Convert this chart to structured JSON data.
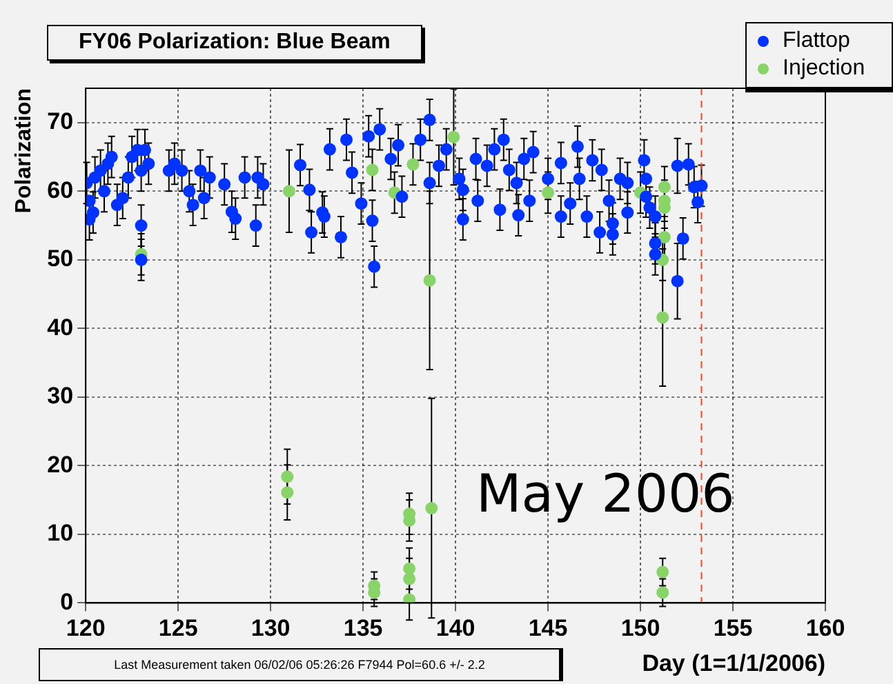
{
  "chart_data": {
    "type": "scatter",
    "title": "FY06 Polarization: Blue Beam",
    "xlabel": "Day (1=1/1/2006)",
    "ylabel": "Polarization",
    "xlim": [
      120,
      160
    ],
    "xticks": [
      120,
      125,
      130,
      135,
      140,
      145,
      150,
      155,
      160
    ],
    "ylim": [
      0,
      75
    ],
    "yticks": [
      0,
      10,
      20,
      30,
      40,
      50,
      60,
      70
    ],
    "grid": true,
    "legend": "top right",
    "marker": "circle",
    "ref_lines": [
      {
        "axis": "x",
        "value": 153.3,
        "color": "#ff4422",
        "line_style": "dashed"
      }
    ],
    "annotations": [
      "May 2006",
      "Last Measurement taken 06/02/06 05:26:26 F7944 Pol=60.6 +/- 2.2"
    ],
    "series": [
      {
        "name": "Flattop",
        "color": "#0033ff",
        "x": [
          120.05,
          120.2,
          120.2,
          120.4,
          120.5,
          120.8,
          121.0,
          121.2,
          121.4,
          121.7,
          122.0,
          122.3,
          122.5,
          122.8,
          123.0,
          123.2,
          123.4,
          123.0,
          123.0,
          124.5,
          124.8,
          125.2,
          125.6,
          125.8,
          126.2,
          126.4,
          126.7,
          127.5,
          127.9,
          128.1,
          128.6,
          129.3,
          129.2,
          129.6,
          131.6,
          132.1,
          132.2,
          132.8,
          133.2,
          132.9,
          133.8,
          134.1,
          134.4,
          134.9,
          135.5,
          135.6,
          135.3,
          135.9,
          136.5,
          136.9,
          137.1,
          138.1,
          138.6,
          138.6,
          139.1,
          139.5,
          140.2,
          140.4,
          140.4,
          141.2,
          141.1,
          141.7,
          142.1,
          142.4,
          142.6,
          142.9,
          143.3,
          143.4,
          143.7,
          144.2,
          144.0,
          145.0,
          145.7,
          145.7,
          146.2,
          146.6,
          147.4,
          147.9,
          146.7,
          147.1,
          147.8,
          148.3,
          148.5,
          148.5,
          148.9,
          149.3,
          149.3,
          150.2,
          150.3,
          150.3,
          150.5,
          150.8,
          150.8,
          150.8,
          152.0,
          152.0,
          152.3,
          152.6,
          152.9,
          153.3,
          153.1
        ],
        "values": [
          61.2,
          58.6,
          55.9,
          56.9,
          62,
          63,
          60,
          64,
          65,
          58,
          59,
          62,
          65,
          66,
          63,
          66,
          64,
          55,
          50,
          63,
          64,
          63,
          60,
          58,
          63,
          59,
          62,
          61,
          57,
          56,
          62,
          62,
          55,
          61,
          63.8,
          60.2,
          54,
          56.9,
          66.1,
          56.3,
          53.3,
          67.5,
          62.7,
          58.2,
          55.7,
          49,
          68,
          69,
          64.7,
          66.7,
          59.2,
          67.5,
          70.4,
          61.2,
          63.7,
          66.1,
          61.8,
          60.2,
          55.9,
          58.6,
          64.7,
          63.7,
          66.1,
          57.3,
          67.5,
          63.1,
          61.2,
          56.5,
          64.7,
          65.7,
          58.6,
          61.8,
          64.1,
          56.3,
          58.2,
          66.5,
          64.5,
          63.1,
          61.8,
          56.3,
          54,
          58.6,
          55.3,
          53.7,
          61.8,
          61.2,
          56.9,
          64.5,
          61.8,
          59.2,
          57.6,
          56.3,
          52.4,
          50.8,
          63.7,
          46.9,
          53.1,
          63.9,
          60.6,
          60.8,
          58.4
        ],
        "errors": [
          3,
          null,
          3,
          3,
          3,
          3,
          3,
          3,
          3,
          3,
          3,
          3,
          3,
          3,
          3,
          3,
          3,
          3,
          3,
          3,
          3,
          3,
          3,
          3,
          3,
          3,
          3,
          3,
          3,
          3,
          3,
          3,
          3,
          3,
          3,
          3,
          3,
          3,
          3,
          3,
          3,
          3,
          3,
          3,
          3,
          3,
          3,
          3,
          3,
          3,
          3,
          3,
          3,
          3,
          3,
          3,
          3,
          3,
          3,
          3,
          3,
          3,
          3,
          3,
          3,
          3,
          3,
          3,
          3,
          3,
          3,
          3,
          3,
          3,
          3,
          3,
          3,
          3,
          3,
          3,
          3,
          3,
          3,
          3,
          3,
          3,
          3,
          3,
          null,
          3,
          3,
          3,
          3,
          3,
          4,
          5.5,
          3,
          3,
          3,
          3,
          3
        ]
      },
      {
        "name": "Injection",
        "color": "#88d468",
        "x": [
          123.0,
          131.0,
          130.9,
          130.9,
          135.5,
          135.6,
          135.6,
          136.7,
          137.7,
          137.5,
          137.5,
          137.5,
          137.5,
          137.5,
          138.6,
          138.7,
          139.9,
          145.0,
          150.0,
          151.3,
          151.3,
          151.3,
          151.3,
          151.2,
          151.2,
          151.2,
          151.2
        ],
        "values": [
          50.8,
          60,
          18.4,
          16.1,
          63.1,
          2.5,
          1.5,
          59.8,
          63.9,
          13,
          12,
          5,
          3.5,
          0.5,
          47,
          13.8,
          67.9,
          59.8,
          59.8,
          60.6,
          58.6,
          57.6,
          53.3,
          50,
          41.6,
          4.5,
          1.5
        ],
        "errors": [
          3,
          6,
          4,
          4,
          3,
          2,
          2,
          3,
          3,
          3,
          3,
          3,
          3,
          3,
          13,
          16,
          7,
          3,
          3,
          3,
          3,
          3,
          3,
          3,
          10,
          2,
          2
        ]
      }
    ]
  }
}
